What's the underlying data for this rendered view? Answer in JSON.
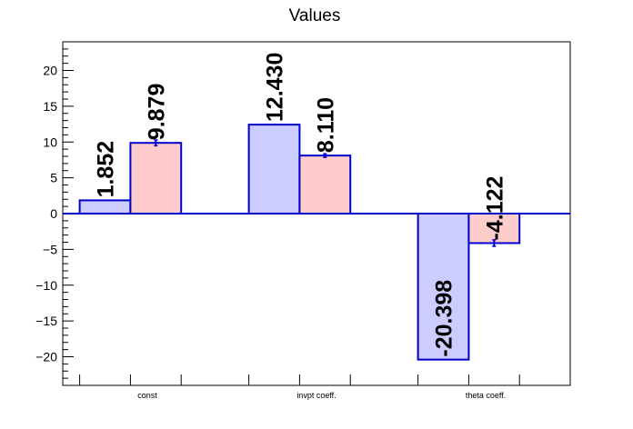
{
  "chart_data": {
    "type": "bar",
    "title": "Values",
    "xlabel": "",
    "ylabel": "",
    "categories": [
      "const",
      "invpt coeff.",
      "theta coeff."
    ],
    "ylim": [
      -24,
      24
    ],
    "yticks": [
      -20,
      -15,
      -10,
      -5,
      0,
      5,
      10,
      15,
      20
    ],
    "ytick_labels": [
      "−20",
      "−15",
      "−10",
      "−5",
      "0",
      "5",
      "10",
      "15",
      "20"
    ],
    "series": [
      {
        "values": [
          1.852,
          12.43,
          -20.398
        ],
        "labels": [
          "1.852",
          "12.430",
          "-20.398"
        ],
        "errors": [
          0,
          0,
          0
        ],
        "fill": "#ccccff",
        "stroke": "#0000cc"
      },
      {
        "values": [
          9.879,
          8.11,
          -4.122
        ],
        "labels": [
          "9.879",
          "8.110",
          "-4.122"
        ],
        "errors": [
          0.4,
          0.25,
          0.45
        ],
        "fill": "#ffcccc",
        "stroke": "#0000cc"
      }
    ],
    "grid": false,
    "legend": "none",
    "colors": {
      "axis": "#000000",
      "zero_line": "#0000cc",
      "error_bar": "#0000cc"
    }
  }
}
